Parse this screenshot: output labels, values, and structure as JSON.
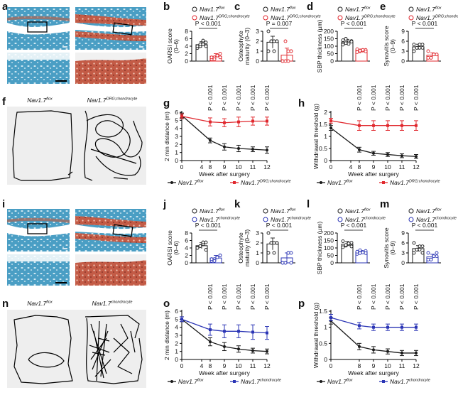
{
  "panel_letters": [
    "a",
    "b",
    "c",
    "d",
    "e",
    "f",
    "g",
    "h",
    "i",
    "j",
    "k",
    "l",
    "m",
    "n",
    "o",
    "p"
  ],
  "colors": {
    "control": "#1a1a1a",
    "drg_chondrocyte": "#e0282e",
    "chondrocyte": "#2b35b5",
    "stain_blue": "#3d92b8",
    "stain_red": "#c05a3e",
    "photo_bg": "#eeeeee"
  },
  "groups": {
    "flox_base": "Nav1.7",
    "flox_sup": "flox",
    "drg_base": "Nav1.7",
    "drg_sup": "DRG;chondrocyte",
    "chon_base": "Nav1.7",
    "chon_sup": "chondrocyte"
  },
  "bar_panels": [
    {
      "id": "b",
      "ylabel1": "OARSI score",
      "ylabel2": "(0–6)",
      "ylim": [
        0,
        8
      ],
      "ticks": [
        0,
        2,
        4,
        6,
        8
      ],
      "pvalue": "P < 0.001",
      "legend": [
        "flox",
        "drg"
      ],
      "bars": [
        {
          "group": "flox",
          "mean": 4.4,
          "sd": 0.8,
          "points": [
            3.5,
            4.0,
            4.5,
            5.0,
            4.0,
            4.5,
            5.5,
            4.0
          ]
        },
        {
          "group": "drg",
          "mean": 1.3,
          "sd": 0.7,
          "points": [
            0.5,
            1.0,
            1.5,
            2.0,
            1.0,
            0.5,
            1.5,
            1.0
          ]
        }
      ]
    },
    {
      "id": "c",
      "ylabel1": "Osteophyte",
      "ylabel2": "maturity (0–3)",
      "ylim": [
        0,
        3
      ],
      "ticks": [
        0,
        1,
        2,
        3
      ],
      "pvalue": "P = 0.007",
      "legend": [
        "flox",
        "drg"
      ],
      "bars": [
        {
          "group": "flox",
          "mean": 1.9,
          "sd": 0.6,
          "points": [
            1,
            2,
            2,
            2,
            3,
            2,
            1,
            2
          ]
        },
        {
          "group": "drg",
          "mean": 0.6,
          "sd": 0.7,
          "points": [
            0,
            0,
            1,
            1,
            0,
            2,
            0,
            1
          ]
        }
      ]
    },
    {
      "id": "d",
      "ylabel1": "SBP thickness (µm)",
      "ylabel2": "",
      "ylim": [
        0,
        200
      ],
      "ticks": [
        0,
        50,
        100,
        150,
        200
      ],
      "pvalue": "P < 0.001",
      "legend": [
        "flox",
        "drg"
      ],
      "bars": [
        {
          "group": "flox",
          "mean": 128,
          "sd": 18,
          "points": [
            110,
            120,
            125,
            135,
            140,
            150,
            115,
            130
          ]
        },
        {
          "group": "drg",
          "mean": 72,
          "sd": 9,
          "points": [
            60,
            65,
            70,
            75,
            80,
            70,
            75,
            65
          ]
        }
      ]
    },
    {
      "id": "e",
      "ylabel1": "Synovitis score",
      "ylabel2": "(0–9)",
      "ylim": [
        0,
        9
      ],
      "ticks": [
        0,
        3,
        6,
        9
      ],
      "pvalue": "P < 0.001",
      "legend": [
        "flox",
        "drg"
      ],
      "bars": [
        {
          "group": "flox",
          "mean": 4.3,
          "sd": 0.8,
          "points": [
            3,
            4,
            4,
            5,
            5,
            4,
            5,
            4
          ]
        },
        {
          "group": "drg",
          "mean": 1.8,
          "sd": 0.7,
          "points": [
            1,
            1,
            2,
            2,
            3,
            1,
            2,
            2
          ]
        }
      ]
    },
    {
      "id": "j",
      "ylabel1": "OARSI score",
      "ylabel2": "(0–6)",
      "ylim": [
        0,
        8
      ],
      "ticks": [
        0,
        2,
        4,
        6,
        8
      ],
      "pvalue": "P < 0.001",
      "legend": [
        "flox",
        "chon"
      ],
      "bars": [
        {
          "group": "flox",
          "mean": 4.6,
          "sd": 0.8,
          "points": [
            4.0,
            4.5,
            5.0,
            5.5,
            4.0,
            4.5,
            5.5,
            3.5
          ]
        },
        {
          "group": "chon",
          "mean": 1.3,
          "sd": 0.7,
          "points": [
            0.5,
            1.0,
            1.5,
            2.0,
            1.0,
            0.5,
            1.5,
            2.0
          ]
        }
      ]
    },
    {
      "id": "k",
      "ylabel1": "Osteophyte",
      "ylabel2": "maturity (0–3)",
      "ylim": [
        0,
        3
      ],
      "ticks": [
        0,
        1,
        2,
        3
      ],
      "pvalue": "P < 0.001",
      "legend": [
        "flox",
        "chon"
      ],
      "bars": [
        {
          "group": "flox",
          "mean": 1.9,
          "sd": 0.6,
          "points": [
            1,
            2,
            2,
            2,
            3,
            2,
            1,
            2
          ]
        },
        {
          "group": "chon",
          "mean": 0.5,
          "sd": 0.5,
          "points": [
            0,
            0,
            1,
            1,
            0,
            0,
            1,
            0
          ]
        }
      ]
    },
    {
      "id": "l",
      "ylabel1": "SBP thickness (µm)",
      "ylabel2": "",
      "ylim": [
        0,
        200
      ],
      "ticks": [
        0,
        50,
        100,
        150,
        200
      ],
      "pvalue": "P < 0.001",
      "legend": [
        "flox",
        "chon"
      ],
      "bars": [
        {
          "group": "flox",
          "mean": 125,
          "sd": 18,
          "points": [
            105,
            115,
            125,
            135,
            145,
            120,
            130,
            110
          ]
        },
        {
          "group": "chon",
          "mean": 73,
          "sd": 10,
          "points": [
            60,
            65,
            70,
            80,
            75,
            85,
            70,
            65
          ]
        }
      ]
    },
    {
      "id": "m",
      "ylabel1": "Synovitis score",
      "ylabel2": "(0–9)",
      "ylim": [
        0,
        9
      ],
      "ticks": [
        0,
        3,
        6,
        9
      ],
      "pvalue": "P < 0.001",
      "legend": [
        "flox",
        "chon"
      ],
      "bars": [
        {
          "group": "flox",
          "mean": 4.3,
          "sd": 0.9,
          "points": [
            3,
            4,
            4,
            5,
            6,
            4,
            5,
            3
          ]
        },
        {
          "group": "chon",
          "mean": 1.8,
          "sd": 0.8,
          "points": [
            1,
            1,
            2,
            2,
            3,
            1,
            2,
            3
          ]
        }
      ]
    }
  ],
  "line_panels": [
    {
      "id": "g",
      "ylabel": "2 min distance (m)",
      "xlabel": "Week after surgery",
      "ylim": [
        0,
        6
      ],
      "yticks": [
        0,
        1,
        2,
        3,
        4,
        5,
        6
      ],
      "xticks": [
        0,
        4,
        8,
        9,
        10,
        11,
        12
      ],
      "pvalues": [
        "P < 0.001",
        "P < 0.001",
        "P < 0.001",
        "P < 0.001",
        "P < 0.001"
      ],
      "legend": [
        "flox",
        "drg"
      ],
      "series": [
        {
          "group": "flox",
          "x": [
            0,
            8,
            9,
            10,
            11,
            12
          ],
          "y": [
            5.6,
            2.5,
            1.7,
            1.5,
            1.4,
            1.3
          ],
          "err": [
            0.3,
            0.3,
            0.4,
            0.4,
            0.3,
            0.4
          ]
        },
        {
          "group": "drg",
          "x": [
            0,
            8,
            9,
            10,
            11,
            12
          ],
          "y": [
            5.5,
            4.8,
            4.7,
            4.8,
            4.9,
            4.9
          ],
          "err": [
            0.3,
            0.5,
            0.5,
            0.6,
            0.5,
            0.5
          ]
        }
      ]
    },
    {
      "id": "h",
      "ylabel": "Withdrawal threshold (g)",
      "xlabel": "Week after surgery",
      "ylim": [
        0,
        2
      ],
      "yticks": [
        0,
        0.5,
        1.0,
        1.5,
        2.0
      ],
      "xticks": [
        0,
        4,
        8,
        9,
        10,
        11,
        12
      ],
      "pvalues": [
        "P < 0.001",
        "P < 0.001",
        "P < 0.001",
        "P < 0.001",
        "P < 0.001"
      ],
      "legend": [
        "flox",
        "drg"
      ],
      "series": [
        {
          "group": "flox",
          "x": [
            0,
            8,
            9,
            10,
            11,
            12
          ],
          "y": [
            1.35,
            0.45,
            0.3,
            0.25,
            0.2,
            0.17
          ],
          "err": [
            0.1,
            0.1,
            0.08,
            0.08,
            0.08,
            0.08
          ]
        },
        {
          "group": "drg",
          "x": [
            0,
            8,
            9,
            10,
            11,
            12
          ],
          "y": [
            1.65,
            1.45,
            1.45,
            1.45,
            1.45,
            1.45
          ],
          "err": [
            0.1,
            0.2,
            0.2,
            0.2,
            0.2,
            0.2
          ]
        }
      ]
    },
    {
      "id": "o",
      "ylabel": "2 min distance (m)",
      "xlabel": "Week after surgery",
      "ylim": [
        0,
        6
      ],
      "yticks": [
        0,
        1,
        2,
        3,
        4,
        5,
        6
      ],
      "xticks": [
        0,
        4,
        8,
        9,
        10,
        11,
        12
      ],
      "pvalues": [
        "P < 0.001",
        "P < 0.001",
        "P < 0.001",
        "P < 0.001",
        "P < 0.001"
      ],
      "legend": [
        "flox",
        "chon"
      ],
      "series": [
        {
          "group": "flox",
          "x": [
            0,
            8,
            9,
            10,
            11,
            12
          ],
          "y": [
            5.0,
            2.2,
            1.6,
            1.3,
            1.1,
            1.0
          ],
          "err": [
            0.3,
            0.5,
            0.5,
            0.4,
            0.3,
            0.3
          ]
        },
        {
          "group": "chon",
          "x": [
            0,
            8,
            9,
            10,
            11,
            12
          ],
          "y": [
            5.0,
            3.7,
            3.5,
            3.5,
            3.4,
            3.3
          ],
          "err": [
            0.3,
            0.7,
            0.8,
            0.8,
            0.9,
            0.8
          ]
        }
      ]
    },
    {
      "id": "p",
      "ylabel": "Withdrawal threshold (g)",
      "xlabel": "Week after surgery",
      "ylim": [
        0,
        1.5
      ],
      "yticks": [
        0,
        0.5,
        1.0,
        1.5
      ],
      "xticks": [
        0,
        8,
        9,
        10,
        11,
        12
      ],
      "pvalues": [
        "P < 0.001",
        "P < 0.001",
        "P < 0.001",
        "P < 0.001",
        "P < 0.001"
      ],
      "legend": [
        "flox",
        "chon"
      ],
      "series": [
        {
          "group": "flox",
          "x": [
            0,
            8,
            9,
            10,
            11,
            12
          ],
          "y": [
            1.2,
            0.4,
            0.3,
            0.25,
            0.2,
            0.2
          ],
          "err": [
            0.1,
            0.1,
            0.1,
            0.08,
            0.08,
            0.08
          ]
        },
        {
          "group": "chon",
          "x": [
            0,
            8,
            9,
            10,
            11,
            12
          ],
          "y": [
            1.3,
            1.05,
            1.0,
            1.0,
            1.0,
            1.0
          ],
          "err": [
            0.1,
            0.1,
            0.1,
            0.1,
            0.1,
            0.1
          ]
        }
      ]
    }
  ],
  "histology_panels": [
    {
      "id": "a",
      "left_group": "flox",
      "right_group": "drg"
    },
    {
      "id": "i",
      "left_group": "flox",
      "right_group": "chon"
    }
  ],
  "track_panels": [
    {
      "id": "f",
      "left_group": "flox",
      "right_group": "drg"
    },
    {
      "id": "n",
      "left_group": "flox",
      "right_group": "chon"
    }
  ]
}
